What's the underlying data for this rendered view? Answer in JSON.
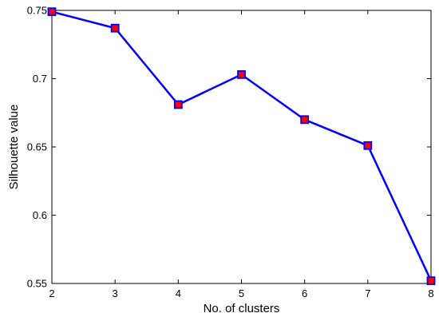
{
  "chart_data": {
    "type": "line",
    "title": "",
    "xlabel": "No. of clusters",
    "ylabel": "Silhouette value",
    "xlim": [
      2,
      8
    ],
    "ylim": [
      0.55,
      0.75
    ],
    "xticks": [
      "2",
      "3",
      "4",
      "5",
      "6",
      "7",
      "8"
    ],
    "yticks": [
      "0.55",
      "0.6",
      "0.65",
      "0.7",
      "0.75"
    ],
    "grid": false,
    "legend": "none",
    "series": [
      {
        "x": [
          2,
          3,
          4,
          5,
          6,
          7,
          8
        ],
        "y": [
          0.749,
          0.737,
          0.681,
          0.703,
          0.67,
          0.651,
          0.552
        ],
        "line_color": "#0000ff",
        "marker": "square",
        "marker_fill": "#ff0000",
        "marker_edge": "#0000ff"
      }
    ]
  }
}
